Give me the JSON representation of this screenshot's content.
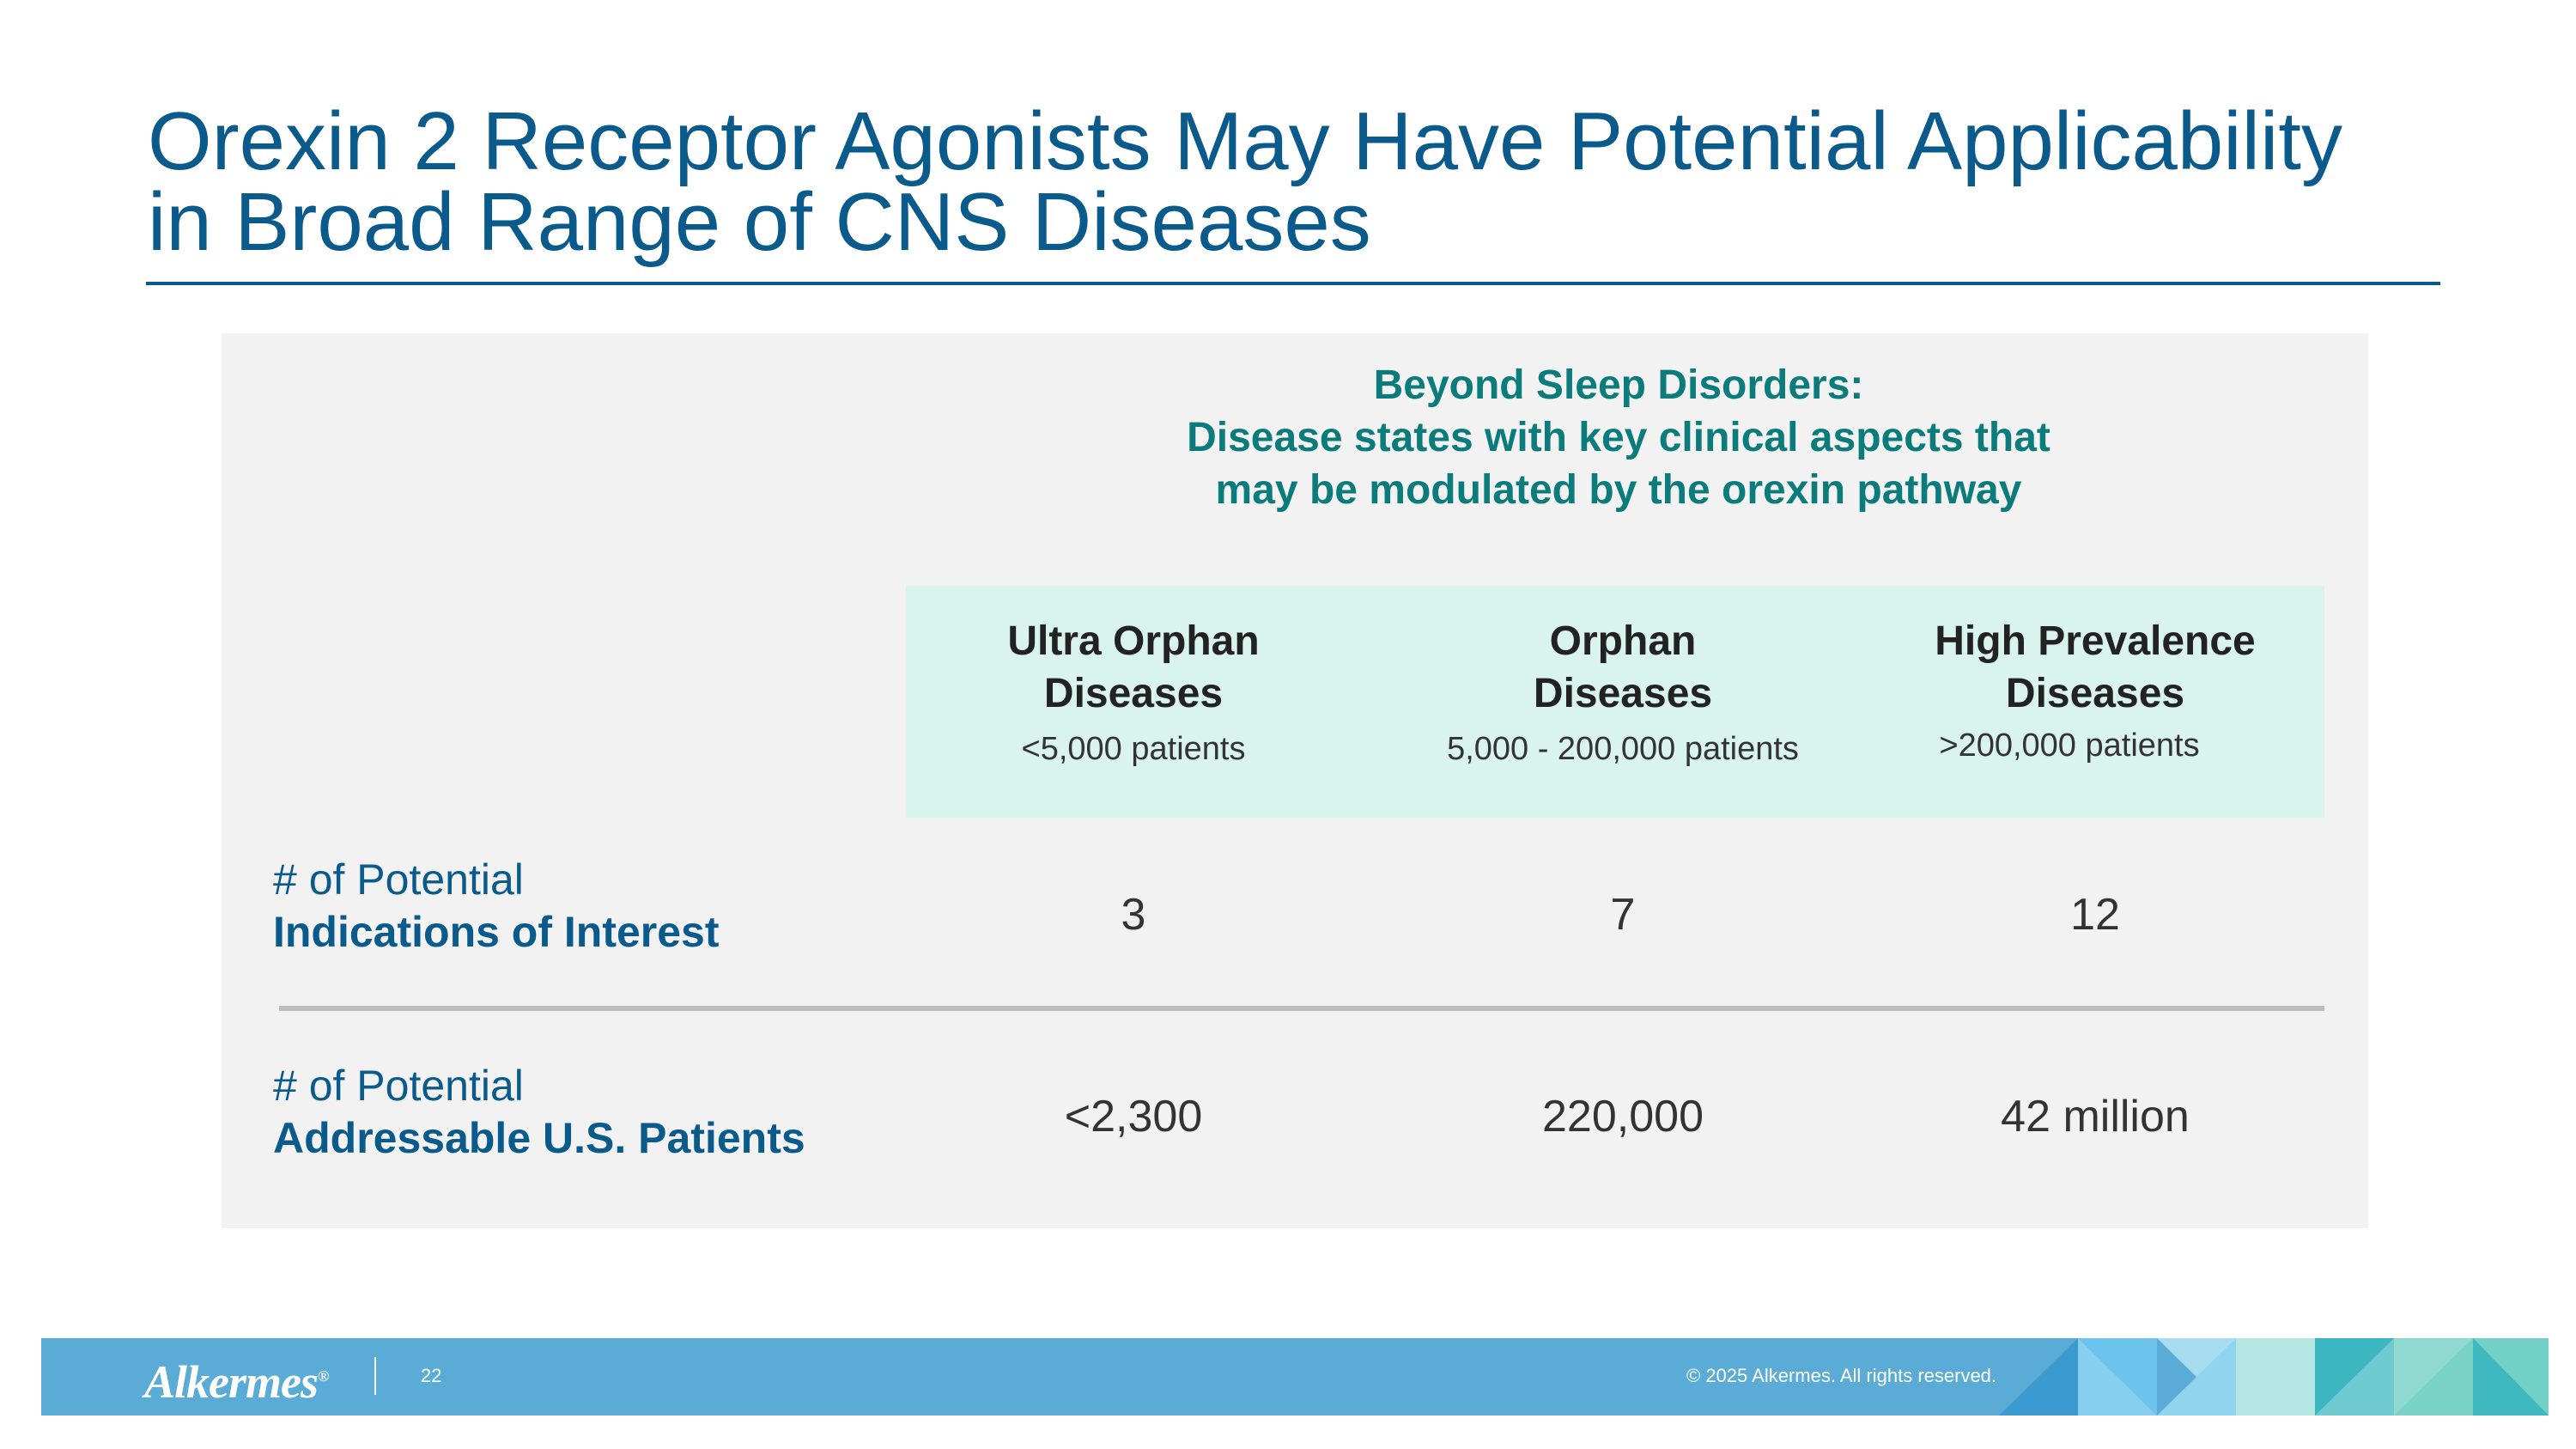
{
  "slide": {
    "title_line1": "Orexin 2 Receptor Agonists May Have Potential Applicability",
    "title_line2": "in Broad Range of CNS Diseases"
  },
  "section": {
    "line1": "Beyond Sleep Disorders:",
    "line2": "Disease states with key clinical aspects that",
    "line3": "may be modulated by the orexin pathway"
  },
  "categories": [
    {
      "name_line1": "Ultra Orphan",
      "name_line2": "Diseases",
      "range": "<5,000 patients"
    },
    {
      "name_line1": "Orphan",
      "name_line2": "Diseases",
      "range": "5,000 - 200,000 patients"
    },
    {
      "name_line1": "High Prevalence",
      "name_line2": "Diseases",
      "range": ">200,000 patients"
    }
  ],
  "rows": [
    {
      "label_line1": "# of Potential",
      "label_line2": "Indications of Interest",
      "values": [
        "3",
        "7",
        "12"
      ]
    },
    {
      "label_line1": "# of Potential",
      "label_line2": "Addressable U.S. Patients",
      "values": [
        "<2,300",
        "220,000",
        "42 million"
      ]
    }
  ],
  "footer": {
    "logo_text": "Alkermes",
    "logo_mark": "®",
    "page_number": "22",
    "copyright": "© 2025 Alkermes. All rights reserved."
  },
  "colors": {
    "title": "#0a5a8c",
    "section": "#0c7b7b",
    "band": "#d9f3ef",
    "footer": "#5aabd6"
  }
}
